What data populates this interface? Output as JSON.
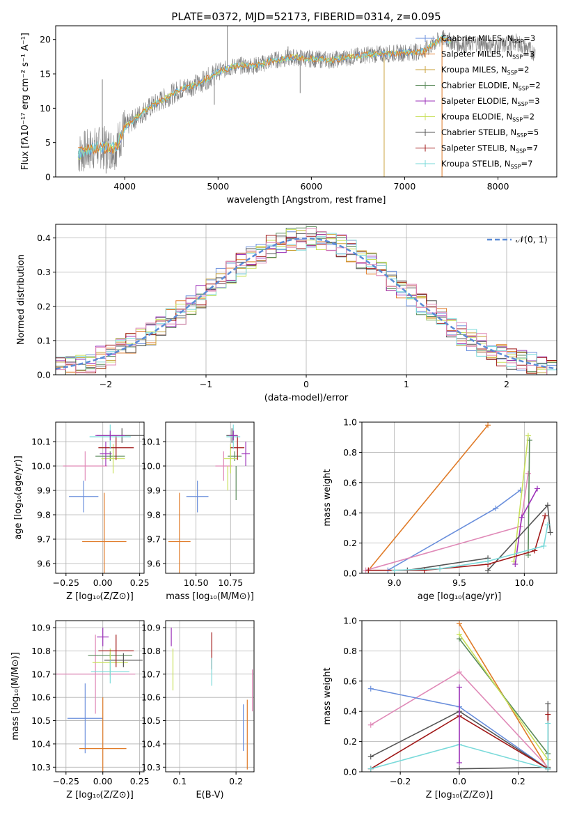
{
  "figure_title": "PLATE=0372, MJD=52173, FIBERID=0314, z=0.095",
  "colors": {
    "chabrier_miles": "#6a8fdc",
    "salpeter_miles": "#e07b28",
    "kroupa_miles": "#c9a23a",
    "chabrier_elodie": "#5a8a5a",
    "salpeter_elodie": "#9b30b8",
    "kroupa_elodie": "#c8e05a",
    "chabrier_stelib": "#555555",
    "salpeter_stelib": "#a01818",
    "kroupa_stelib": "#7adada",
    "pink": "#e08ab8",
    "gauss": "#5b8bd6",
    "data": "#808080"
  },
  "chart_data": [
    {
      "id": "spectrum",
      "type": "line",
      "xlabel": "wavelength [Angstrom, rest frame]",
      "ylabel": "Flux [fλ10⁻¹⁷ erg cm⁻² s⁻¹ A⁻¹]",
      "xlim": [
        3260,
        8630
      ],
      "ylim": [
        0,
        22
      ],
      "xticks": [
        4000,
        5000,
        6000,
        7000,
        8000
      ],
      "yticks": [
        0,
        5,
        10,
        15,
        20
      ],
      "legend": [
        "Chabrier MILES, N_SSP=3",
        "Salpeter MILES, N_SSP=3",
        "Kroupa MILES, N_SSP=2",
        "Chabrier ELODIE, N_SSP=2",
        "Salpeter ELODIE, N_SSP=3",
        "Kroupa ELODIE, N_SSP=2",
        "Chabrier STELIB, N_SSP=5",
        "Salpeter STELIB, N_SSP=7",
        "Kroupa STELIB, N_SSP=7"
      ],
      "continuum": [
        [
          3500,
          3.4
        ],
        [
          3700,
          4.3
        ],
        [
          3900,
          4.2
        ],
        [
          4000,
          7.2
        ],
        [
          4200,
          9.5
        ],
        [
          4400,
          11.2
        ],
        [
          4600,
          12.8
        ],
        [
          4800,
          13.6
        ],
        [
          5000,
          15.3
        ],
        [
          5200,
          16.2
        ],
        [
          5400,
          16.2
        ],
        [
          5600,
          17.0
        ],
        [
          5800,
          17.4
        ],
        [
          6000,
          17.2
        ],
        [
          6200,
          17.0
        ],
        [
          6400,
          17.4
        ],
        [
          6600,
          17.8
        ],
        [
          6800,
          17.9
        ],
        [
          7000,
          18.1
        ],
        [
          7200,
          18.3
        ],
        [
          7400,
          20.2
        ],
        [
          7600,
          19.2
        ],
        [
          7800,
          19.5
        ],
        [
          8000,
          19.0
        ],
        [
          8200,
          19.6
        ],
        [
          8400,
          18.0
        ]
      ],
      "spikes": [
        {
          "x": 3760,
          "y": 14.2
        },
        {
          "x": 3800,
          "y": 0.5
        },
        {
          "x": 5100,
          "y": 22
        },
        {
          "x": 5750,
          "y": 19
        },
        {
          "x": 6780,
          "y": 0
        },
        {
          "x": 7400,
          "y": 0
        },
        {
          "x": 4960,
          "y": 10.5
        },
        {
          "x": 5880,
          "y": 12.2
        }
      ]
    },
    {
      "id": "residual_hist",
      "type": "histogram",
      "xlabel": "(data-model)/error",
      "ylabel": "Normed distribution",
      "xlim": [
        -2.5,
        2.5
      ],
      "ylim": [
        0,
        0.44
      ],
      "xticks": [
        -2,
        -1,
        0,
        1,
        2
      ],
      "yticks": [
        0.0,
        0.1,
        0.2,
        0.3,
        0.4
      ],
      "legend": [
        "𝒩(0, 1)"
      ],
      "bin_width": 0.1
    },
    {
      "id": "age_vs_Z",
      "type": "errorbar",
      "xlabel": "Z [log₁₀(Z/Z⊙)]",
      "ylabel": "age  [log₁₀(age/yr)]",
      "xlim": [
        -0.32,
        0.28
      ],
      "ylim": [
        9.56,
        10.18
      ],
      "xticks": [
        -0.25,
        0.0,
        0.25
      ],
      "yticks": [
        9.6,
        9.7,
        9.8,
        9.9,
        10.0,
        10.1
      ],
      "points": [
        {
          "c": "chabrier_miles",
          "x": -0.13,
          "xe": 0.1,
          "y": 9.875,
          "ye": 0.065
        },
        {
          "c": "salpeter_miles",
          "x": 0.01,
          "xe": 0.15,
          "y": 9.69,
          "ye": 0.2
        },
        {
          "c": "pink",
          "x": -0.12,
          "xe": 0.15,
          "y": 10.0,
          "ye": 0.06
        },
        {
          "c": "chabrier_elodie",
          "x": 0.05,
          "xe": 0.1,
          "y": 10.04,
          "ye": 0.02
        },
        {
          "c": "kroupa_elodie",
          "x": 0.07,
          "xe": 0.08,
          "y": 10.03,
          "ye": 0.06
        },
        {
          "c": "salpeter_elodie",
          "x": 0.02,
          "xe": 0.04,
          "y": 10.05,
          "ye": 0.05
        },
        {
          "c": "chabrier_stelib",
          "x": 0.13,
          "xe": 0.17,
          "y": 10.125,
          "ye": 0.03
        },
        {
          "c": "salpeter_stelib",
          "x": 0.09,
          "xe": 0.12,
          "y": 10.075,
          "ye": 0.05
        },
        {
          "c": "kroupa_stelib",
          "x": 0.05,
          "xe": 0.14,
          "y": 10.12,
          "ye": 0.05
        },
        {
          "c": "salpeter_elodie",
          "x": 0.05,
          "xe": 0.1,
          "y": 10.125,
          "ye": 0.02
        }
      ]
    },
    {
      "id": "age_vs_mass",
      "type": "errorbar",
      "xlabel": "mass [log₁₀(M/M⊙)]",
      "xlim": [
        10.28,
        10.92
      ],
      "ylim": [
        9.56,
        10.18
      ],
      "xticks": [
        10.5,
        10.75
      ],
      "yticks": [
        9.6,
        9.7,
        9.8,
        9.9,
        10.0,
        10.1
      ],
      "points": [
        {
          "c": "chabrier_miles",
          "x": 10.51,
          "xe": 0.08,
          "y": 9.875,
          "ye": 0.065
        },
        {
          "c": "salpeter_miles",
          "x": 10.38,
          "xe": 0.08,
          "y": 9.69,
          "ye": 0.2
        },
        {
          "c": "pink",
          "x": 10.7,
          "xe": 0.06,
          "y": 10.0,
          "ye": 0.06
        },
        {
          "c": "chabrier_elodie",
          "x": 10.78,
          "xe": 0.05,
          "y": 10.04,
          "ye": 0.02
        },
        {
          "c": "kroupa_elodie",
          "x": 10.75,
          "xe": 0.05,
          "y": 10.03,
          "ye": 0.06
        },
        {
          "c": "salpeter_elodie",
          "x": 10.86,
          "xe": 0.03,
          "y": 10.05,
          "ye": 0.05
        },
        {
          "c": "chabrier_stelib",
          "x": 10.76,
          "xe": 0.04,
          "y": 10.125,
          "ye": 0.03
        },
        {
          "c": "salpeter_stelib",
          "x": 10.8,
          "xe": 0.05,
          "y": 10.075,
          "ye": 0.05
        },
        {
          "c": "kroupa_stelib",
          "x": 10.77,
          "xe": 0.05,
          "y": 10.12,
          "ye": 0.05
        },
        {
          "c": "salpeter_elodie",
          "x": 10.77,
          "xe": 0.03,
          "y": 10.125,
          "ye": 0.02
        },
        {
          "c": "chabrier_elodie",
          "x": 10.79,
          "xe": 0.0,
          "y": 9.93,
          "ye": 0.07
        },
        {
          "c": "kroupa_elodie",
          "x": 10.73,
          "xe": 0.0,
          "y": 9.95,
          "ye": 0.05
        }
      ]
    },
    {
      "id": "weight_vs_age",
      "type": "line",
      "xlabel": "age  [log₁₀(age/yr)]",
      "ylabel": "mass weight",
      "xlim": [
        8.75,
        10.25
      ],
      "ylim": [
        0,
        1
      ],
      "xticks": [
        9.0,
        9.5,
        10.0
      ],
      "yticks": [
        0.0,
        0.2,
        0.4,
        0.6,
        0.8,
        1.0
      ],
      "series": [
        {
          "c": "salpeter_miles",
          "pts": [
            [
              8.8,
              0.02
            ],
            [
              9.72,
              0.98
            ]
          ]
        },
        {
          "c": "chabrier_miles",
          "pts": [
            [
              8.95,
              0.02
            ],
            [
              9.78,
              0.43
            ],
            [
              9.97,
              0.55
            ]
          ]
        },
        {
          "c": "pink",
          "pts": [
            [
              8.78,
              0.02
            ],
            [
              9.97,
              0.31
            ],
            [
              10.03,
              0.66
            ]
          ]
        },
        {
          "c": "chabrier_elodie",
          "pts": [
            [
              10.03,
              0.12
            ],
            [
              10.04,
              0.88
            ]
          ]
        },
        {
          "c": "kroupa_elodie",
          "pts": [
            [
              9.92,
              0.08
            ],
            [
              10.03,
              0.91
            ]
          ]
        },
        {
          "c": "salpeter_elodie",
          "pts": [
            [
              9.93,
              0.06
            ],
            [
              9.98,
              0.37
            ],
            [
              10.1,
              0.56
            ]
          ]
        },
        {
          "c": "chabrier_stelib",
          "pts": [
            [
              9.1,
              0.02
            ],
            [
              9.72,
              0.1
            ]
          ]
        },
        {
          "c": "chabrier_stelib",
          "pts": [
            [
              9.72,
              0.02
            ],
            [
              10.18,
              0.45
            ],
            [
              10.2,
              0.27
            ]
          ]
        },
        {
          "c": "salpeter_stelib",
          "pts": [
            [
              8.8,
              0.02
            ],
            [
              9.23,
              0.02
            ],
            [
              9.72,
              0.06
            ],
            [
              10.08,
              0.15
            ],
            [
              10.16,
              0.38
            ]
          ]
        },
        {
          "c": "kroupa_stelib",
          "pts": [
            [
              9.0,
              0.02
            ],
            [
              9.35,
              0.03
            ],
            [
              9.72,
              0.08
            ],
            [
              10.15,
              0.18
            ],
            [
              10.18,
              0.32
            ]
          ]
        }
      ]
    },
    {
      "id": "mass_vs_Z",
      "type": "errorbar",
      "xlabel": "Z [log₁₀(Z/Z⊙)]",
      "ylabel": "mass [log₁₀(M/M⊙)]",
      "xlim": [
        -0.32,
        0.28
      ],
      "ylim": [
        10.28,
        10.93
      ],
      "xticks": [
        -0.25,
        0.0,
        0.25
      ],
      "yticks": [
        10.3,
        10.4,
        10.5,
        10.6,
        10.7,
        10.8,
        10.9
      ],
      "points": [
        {
          "c": "chabrier_miles",
          "x": -0.12,
          "xe": 0.12,
          "y": 10.51,
          "ye": 0.15
        },
        {
          "c": "salpeter_miles",
          "x": 0.0,
          "xe": 0.16,
          "y": 10.38,
          "ye": 0.22
        },
        {
          "c": "pink",
          "x": -0.05,
          "xe": 0.27,
          "y": 10.7,
          "ye": 0.17
        },
        {
          "c": "salpeter_elodie",
          "x": 0.0,
          "xe": 0.04,
          "y": 10.86,
          "ye": 0.04
        },
        {
          "c": "chabrier_elodie",
          "x": 0.05,
          "xe": 0.15,
          "y": 10.78,
          "ye": 0.01
        },
        {
          "c": "kroupa_elodie",
          "x": 0.05,
          "xe": 0.12,
          "y": 10.75,
          "ye": 0.06
        },
        {
          "c": "chabrier_stelib",
          "x": 0.14,
          "xe": 0.13,
          "y": 10.76,
          "ye": 0.03
        },
        {
          "c": "salpeter_stelib",
          "x": 0.09,
          "xe": 0.12,
          "y": 10.8,
          "ye": 0.07
        },
        {
          "c": "kroupa_stelib",
          "x": 0.05,
          "xe": 0.13,
          "y": 10.71,
          "ye": 0.05
        }
      ]
    },
    {
      "id": "mass_vs_EBV",
      "type": "errorbar",
      "xlabel": "E(B-V)",
      "xlim": [
        0.075,
        0.232
      ],
      "ylim": [
        10.28,
        10.93
      ],
      "xticks": [
        0.1,
        0.2
      ],
      "yticks": [
        10.3,
        10.4,
        10.5,
        10.6,
        10.7,
        10.8,
        10.9
      ],
      "points": [
        {
          "c": "salpeter_elodie",
          "x": 0.085,
          "ye": 0.04,
          "y": 10.86
        },
        {
          "c": "kroupa_elodie",
          "x": 0.088,
          "ye": 0.09,
          "y": 10.72
        },
        {
          "c": "salpeter_stelib",
          "x": 0.157,
          "ye": 0.08,
          "y": 10.8
        },
        {
          "c": "kroupa_stelib",
          "x": 0.157,
          "ye": 0.06,
          "y": 10.71
        },
        {
          "c": "chabrier_miles",
          "x": 0.213,
          "ye": 0.1,
          "y": 10.47
        },
        {
          "c": "salpeter_miles",
          "x": 0.22,
          "ye": 0.15,
          "y": 10.44
        },
        {
          "c": "pink",
          "x": 0.229,
          "ye": 0.09,
          "y": 10.63
        }
      ]
    },
    {
      "id": "weight_vs_Z",
      "type": "line",
      "xlabel": "Z [log₁₀(Z/Z⊙)]",
      "ylabel": "mass weight",
      "xlim": [
        -0.33,
        0.33
      ],
      "ylim": [
        0,
        1
      ],
      "xticks": [
        -0.2,
        0.0,
        0.2
      ],
      "yticks": [
        0.0,
        0.2,
        0.4,
        0.6,
        0.8,
        1.0
      ],
      "series": [
        {
          "c": "salpeter_miles",
          "pts": [
            [
              0.0,
              0.98
            ],
            [
              0.3,
              0.02
            ]
          ]
        },
        {
          "c": "chabrier_elodie",
          "pts": [
            [
              0.0,
              0.88
            ],
            [
              0.3,
              0.12
            ]
          ]
        },
        {
          "c": "kroupa_elodie",
          "pts": [
            [
              0.0,
              0.91
            ],
            [
              0.3,
              0.08
            ]
          ]
        },
        {
          "c": "pink",
          "pts": [
            [
              -0.3,
              0.31
            ],
            [
              0.0,
              0.66
            ],
            [
              0.3,
              0.03
            ]
          ]
        },
        {
          "c": "chabrier_miles",
          "pts": [
            [
              -0.3,
              0.55
            ],
            [
              0.0,
              0.43
            ],
            [
              0.3,
              0.02
            ]
          ]
        },
        {
          "c": "chabrier_stelib",
          "pts": [
            [
              -0.3,
              0.1
            ],
            [
              0.0,
              0.4
            ],
            [
              0.3,
              0.02
            ],
            [
              0.3,
              0.45
            ]
          ]
        },
        {
          "c": "chabrier_stelib",
          "pts": [
            [
              0.0,
              0.02
            ],
            [
              0.3,
              0.03
            ]
          ]
        },
        {
          "c": "salpeter_stelib",
          "pts": [
            [
              -0.3,
              0.02
            ],
            [
              0.0,
              0.37
            ],
            [
              0.3,
              0.02
            ],
            [
              0.3,
              0.38
            ]
          ]
        },
        {
          "c": "kroupa_stelib",
          "pts": [
            [
              -0.3,
              0.02
            ],
            [
              0.0,
              0.18
            ],
            [
              0.3,
              0.02
            ],
            [
              0.3,
              0.32
            ]
          ]
        },
        {
          "c": "salpeter_elodie",
          "pts": [
            [
              0.0,
              0.56
            ],
            [
              0.0,
              0.06
            ]
          ]
        }
      ]
    }
  ]
}
